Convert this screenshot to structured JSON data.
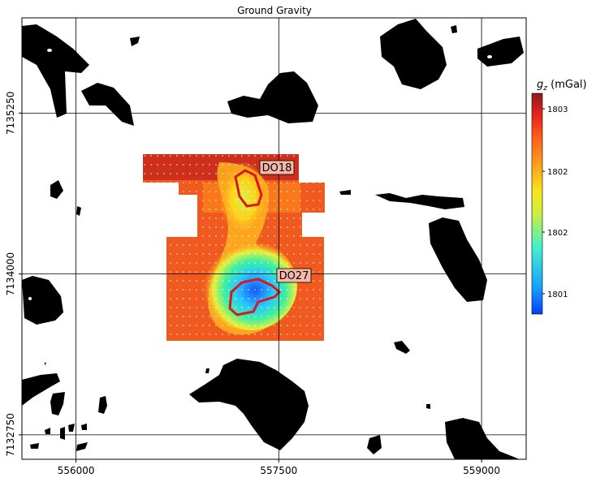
{
  "chart_data": {
    "type": "heatmap",
    "title": "Ground Gravity",
    "xlabel": "",
    "ylabel": "",
    "x_ticks": [
      "556000",
      "557500",
      "559000"
    ],
    "y_ticks": [
      "7135250",
      "7134000",
      "7132750"
    ],
    "x_tick_values": [
      556000,
      557500,
      559000
    ],
    "y_tick_values": [
      7135250,
      7134000,
      7132750
    ],
    "xlim": [
      555500,
      559000
    ],
    "ylim": [
      7132500,
      7135750
    ],
    "grid": true,
    "colorbar": {
      "label_main": "g",
      "label_sub": "z",
      "label_unit": " (mGal)",
      "ticks": [
        "1803",
        "1802",
        "1802",
        "1801"
      ],
      "colormap": "jet",
      "range": [
        1800.7,
        1803.3
      ]
    },
    "annotations": [
      {
        "text": "DO18",
        "x": 557450,
        "y": 7134570
      },
      {
        "text": "DO27",
        "x": 557540,
        "y": 7133720
      }
    ],
    "contour_color": "#d7191c"
  }
}
